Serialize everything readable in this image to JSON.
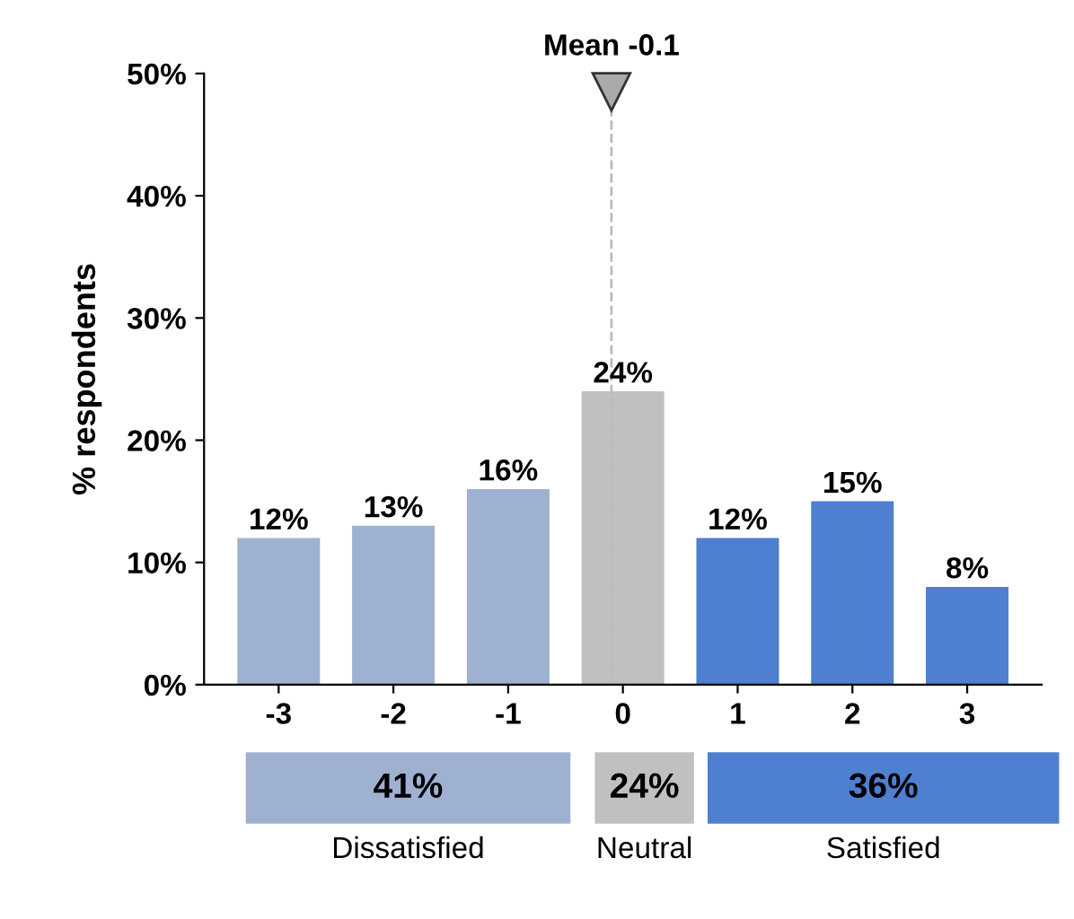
{
  "chart_data": {
    "type": "bar",
    "x": [
      -3,
      -2,
      -1,
      0,
      1,
      2,
      3
    ],
    "values": [
      12,
      13,
      16,
      24,
      12,
      15,
      8
    ],
    "value_labels": [
      "12%",
      "13%",
      "16%",
      "24%",
      "12%",
      "15%",
      "8%"
    ],
    "colors": [
      "#9fb1d0",
      "#9fb1d0",
      "#9fb1d0",
      "#c0c0c0",
      "#4e7fd0",
      "#4e7fd0",
      "#4e7fd0"
    ],
    "xlim": [
      -3.65,
      3.65
    ],
    "xticks": [
      -3,
      -2,
      -1,
      0,
      1,
      2,
      3
    ],
    "ylim": [
      0,
      50
    ],
    "yticks": [
      {
        "value": 0,
        "label": "0%"
      },
      {
        "value": 10,
        "label": "10%"
      },
      {
        "value": 20,
        "label": "20%"
      },
      {
        "value": 30,
        "label": "30%"
      },
      {
        "value": 40,
        "label": "40%"
      },
      {
        "value": 50,
        "label": "50%"
      }
    ],
    "ylabel": "% respondents",
    "ref_lines": [
      {
        "axis": "x",
        "value": -0.1,
        "label": "Mean -0.1",
        "color": "#bbbbbb",
        "line_style": "dashed"
      }
    ],
    "annotations": [
      "41%",
      "24%",
      "36%",
      "Dissatisfied",
      "Neutral",
      "Satisfied"
    ],
    "grid": false,
    "legend": false
  }
}
